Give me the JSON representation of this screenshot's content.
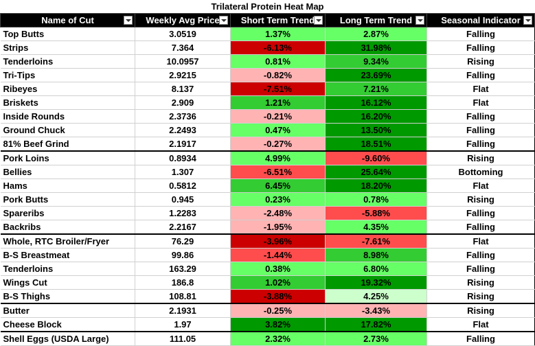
{
  "title": "Trilateral Protein Heat Map",
  "colors": {
    "bright_green": "#66ff66",
    "mid_green": "#33cc33",
    "dark_green": "#009900",
    "pale_green": "#ccffcc",
    "pale_red": "#ffb3b3",
    "mid_red": "#ff4d4d",
    "dark_red": "#cc0000"
  },
  "chart_data": {
    "type": "table",
    "title": "Trilateral Protein Heat Map",
    "columns": [
      "Name of Cut",
      "Weekly Avg Price",
      "Short Term Trend",
      "Long Term Trend",
      "Seasonal Indicator"
    ],
    "rows": [
      {
        "name": "Top Butts",
        "price": "3.0519",
        "short": "1.37%",
        "long": "2.87%",
        "season": "Falling",
        "sc": "bright_green",
        "lc": "bright_green"
      },
      {
        "name": "Strips",
        "price": "7.364",
        "short": "-6.13%",
        "long": "31.98%",
        "season": "Falling",
        "sc": "dark_red",
        "lc": "dark_green"
      },
      {
        "name": "Tenderloins",
        "price": "10.0957",
        "short": "0.81%",
        "long": "9.34%",
        "season": "Rising",
        "sc": "bright_green",
        "lc": "mid_green"
      },
      {
        "name": "Tri-Tips",
        "price": "2.9215",
        "short": "-0.82%",
        "long": "23.69%",
        "season": "Falling",
        "sc": "pale_red",
        "lc": "dark_green"
      },
      {
        "name": "Ribeyes",
        "price": "8.137",
        "short": "-7.51%",
        "long": "7.21%",
        "season": "Flat",
        "sc": "dark_red",
        "lc": "mid_green"
      },
      {
        "name": "Briskets",
        "price": "2.909",
        "short": "1.21%",
        "long": "16.12%",
        "season": "Flat",
        "sc": "mid_green",
        "lc": "dark_green"
      },
      {
        "name": "Inside Rounds",
        "price": "2.3736",
        "short": "-0.21%",
        "long": "16.20%",
        "season": "Falling",
        "sc": "pale_red",
        "lc": "dark_green"
      },
      {
        "name": "Ground Chuck",
        "price": "2.2493",
        "short": "0.47%",
        "long": "13.50%",
        "season": "Falling",
        "sc": "bright_green",
        "lc": "dark_green"
      },
      {
        "name": "81% Beef Grind",
        "price": "2.1917",
        "short": "-0.27%",
        "long": "18.51%",
        "season": "Falling",
        "sc": "pale_red",
        "lc": "dark_green"
      },
      {
        "name": "Pork Loins",
        "price": "0.8934",
        "short": "4.99%",
        "long": "-9.60%",
        "season": "Rising",
        "sc": "bright_green",
        "lc": "mid_red",
        "sep": true
      },
      {
        "name": "Bellies",
        "price": "1.307",
        "short": "-6.51%",
        "long": "25.64%",
        "season": "Bottoming",
        "sc": "mid_red",
        "lc": "dark_green"
      },
      {
        "name": "Hams",
        "price": "0.5812",
        "short": "6.45%",
        "long": "18.20%",
        "season": "Flat",
        "sc": "mid_green",
        "lc": "dark_green"
      },
      {
        "name": "Pork Butts",
        "price": "0.945",
        "short": "0.23%",
        "long": "0.78%",
        "season": "Rising",
        "sc": "bright_green",
        "lc": "bright_green"
      },
      {
        "name": "Spareribs",
        "price": "1.2283",
        "short": "-2.48%",
        "long": "-5.88%",
        "season": "Falling",
        "sc": "pale_red",
        "lc": "mid_red"
      },
      {
        "name": "Backribs",
        "price": "2.2167",
        "short": "-1.95%",
        "long": "4.35%",
        "season": "Falling",
        "sc": "pale_red",
        "lc": "bright_green"
      },
      {
        "name": "Whole, RTC Broiler/Fryer",
        "price": "76.29",
        "short": "-3.96%",
        "long": "-7.61%",
        "season": "Flat",
        "sc": "dark_red",
        "lc": "mid_red",
        "sep": true
      },
      {
        "name": "B-S Breastmeat",
        "price": "99.86",
        "short": "-1.44%",
        "long": "8.98%",
        "season": "Falling",
        "sc": "mid_red",
        "lc": "mid_green"
      },
      {
        "name": "Tenderloins",
        "price": "163.29",
        "short": "0.38%",
        "long": "6.80%",
        "season": "Falling",
        "sc": "bright_green",
        "lc": "bright_green"
      },
      {
        "name": "Wings Cut",
        "price": "186.8",
        "short": "1.02%",
        "long": "19.32%",
        "season": "Rising",
        "sc": "mid_green",
        "lc": "dark_green"
      },
      {
        "name": "B-S Thighs",
        "price": "108.81",
        "short": "-3.88%",
        "long": "4.25%",
        "season": "Rising",
        "sc": "dark_red",
        "lc": "pale_green"
      },
      {
        "name": "Butter",
        "price": "2.1931",
        "short": "-0.25%",
        "long": "-3.43%",
        "season": "Rising",
        "sc": "pale_red",
        "lc": "pale_red",
        "sep": true
      },
      {
        "name": "Cheese Block",
        "price": "1.97",
        "short": "3.82%",
        "long": "17.82%",
        "season": "Flat",
        "sc": "dark_green",
        "lc": "dark_green"
      },
      {
        "name": "Shell Eggs (USDA Large)",
        "price": "111.05",
        "short": "2.32%",
        "long": "2.73%",
        "season": "Falling",
        "sc": "bright_green",
        "lc": "bright_green",
        "sep": true
      }
    ]
  }
}
